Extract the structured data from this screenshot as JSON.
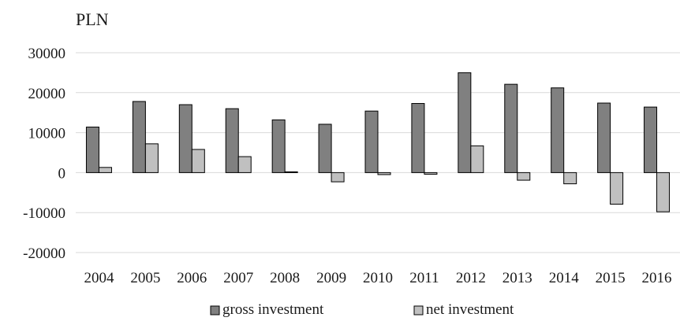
{
  "chart_data": {
    "type": "bar",
    "unit_label": "PLN",
    "categories": [
      "2004",
      "2005",
      "2006",
      "2007",
      "2008",
      "2009",
      "2010",
      "2011",
      "2012",
      "2013",
      "2014",
      "2015",
      "2016"
    ],
    "series": [
      {
        "name": "gross investment",
        "color": "#808080",
        "values": [
          11400,
          17800,
          17000,
          16000,
          13200,
          12100,
          15400,
          17300,
          25000,
          22100,
          21200,
          17400,
          16400
        ]
      },
      {
        "name": "net investment",
        "color": "#c0c0c0",
        "values": [
          1300,
          7200,
          5800,
          4000,
          200,
          -2300,
          -500,
          -400,
          6700,
          -1900,
          -2800,
          -7900,
          -9800
        ]
      }
    ],
    "ylim": [
      -20000,
      30000
    ],
    "yticks": [
      "30000",
      "20000",
      "10000",
      "0",
      "-10000",
      "-20000"
    ],
    "ytick_values": [
      30000,
      20000,
      10000,
      0,
      -10000,
      -20000
    ],
    "grid": true,
    "legend": "bottom"
  }
}
